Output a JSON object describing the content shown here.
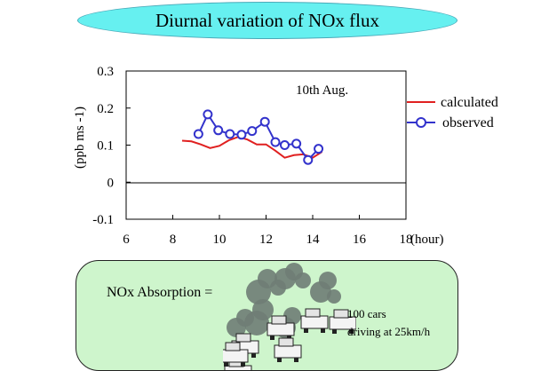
{
  "title": "Diurnal variation of NOx flux",
  "chart_data": {
    "type": "line",
    "ylabel": "(ppb ms -1)",
    "xunit": "(hour)",
    "annotation": "10th Aug.",
    "xlim": [
      6,
      18
    ],
    "ylim": [
      -0.1,
      0.3
    ],
    "xticks": [
      6,
      8,
      10,
      12,
      14,
      16,
      18
    ],
    "yticks": [
      "0.3",
      "0.2",
      "0.1",
      "0",
      "-0.1"
    ],
    "series": [
      {
        "name": "calculated",
        "color": "#e02020",
        "marker": "none",
        "x": [
          8.4,
          8.8,
          9.2,
          9.6,
          10.0,
          10.4,
          10.8,
          11.2,
          11.6,
          12.0,
          12.4,
          12.8,
          13.2,
          13.6,
          14.0,
          14.4
        ],
        "y": [
          0.112,
          0.11,
          0.102,
          0.092,
          0.098,
          0.113,
          0.122,
          0.115,
          0.102,
          0.102,
          0.085,
          0.066,
          0.073,
          0.075,
          0.066,
          0.082
        ]
      },
      {
        "name": "observed",
        "color": "#3333cc",
        "marker": "circle",
        "x": [
          9.1,
          9.5,
          9.95,
          10.45,
          10.95,
          11.4,
          11.95,
          12.4,
          12.8,
          13.3,
          13.8,
          14.25
        ],
        "y": [
          0.13,
          0.183,
          0.14,
          0.13,
          0.128,
          0.138,
          0.163,
          0.108,
          0.1,
          0.104,
          0.06,
          0.09
        ]
      }
    ]
  },
  "panel": {
    "label": "NOx Absorption =",
    "cars_line1": "100 cars",
    "cars_line2": "driving at 25km/h"
  },
  "icons": [
    "car-with-exhaust-icon"
  ]
}
